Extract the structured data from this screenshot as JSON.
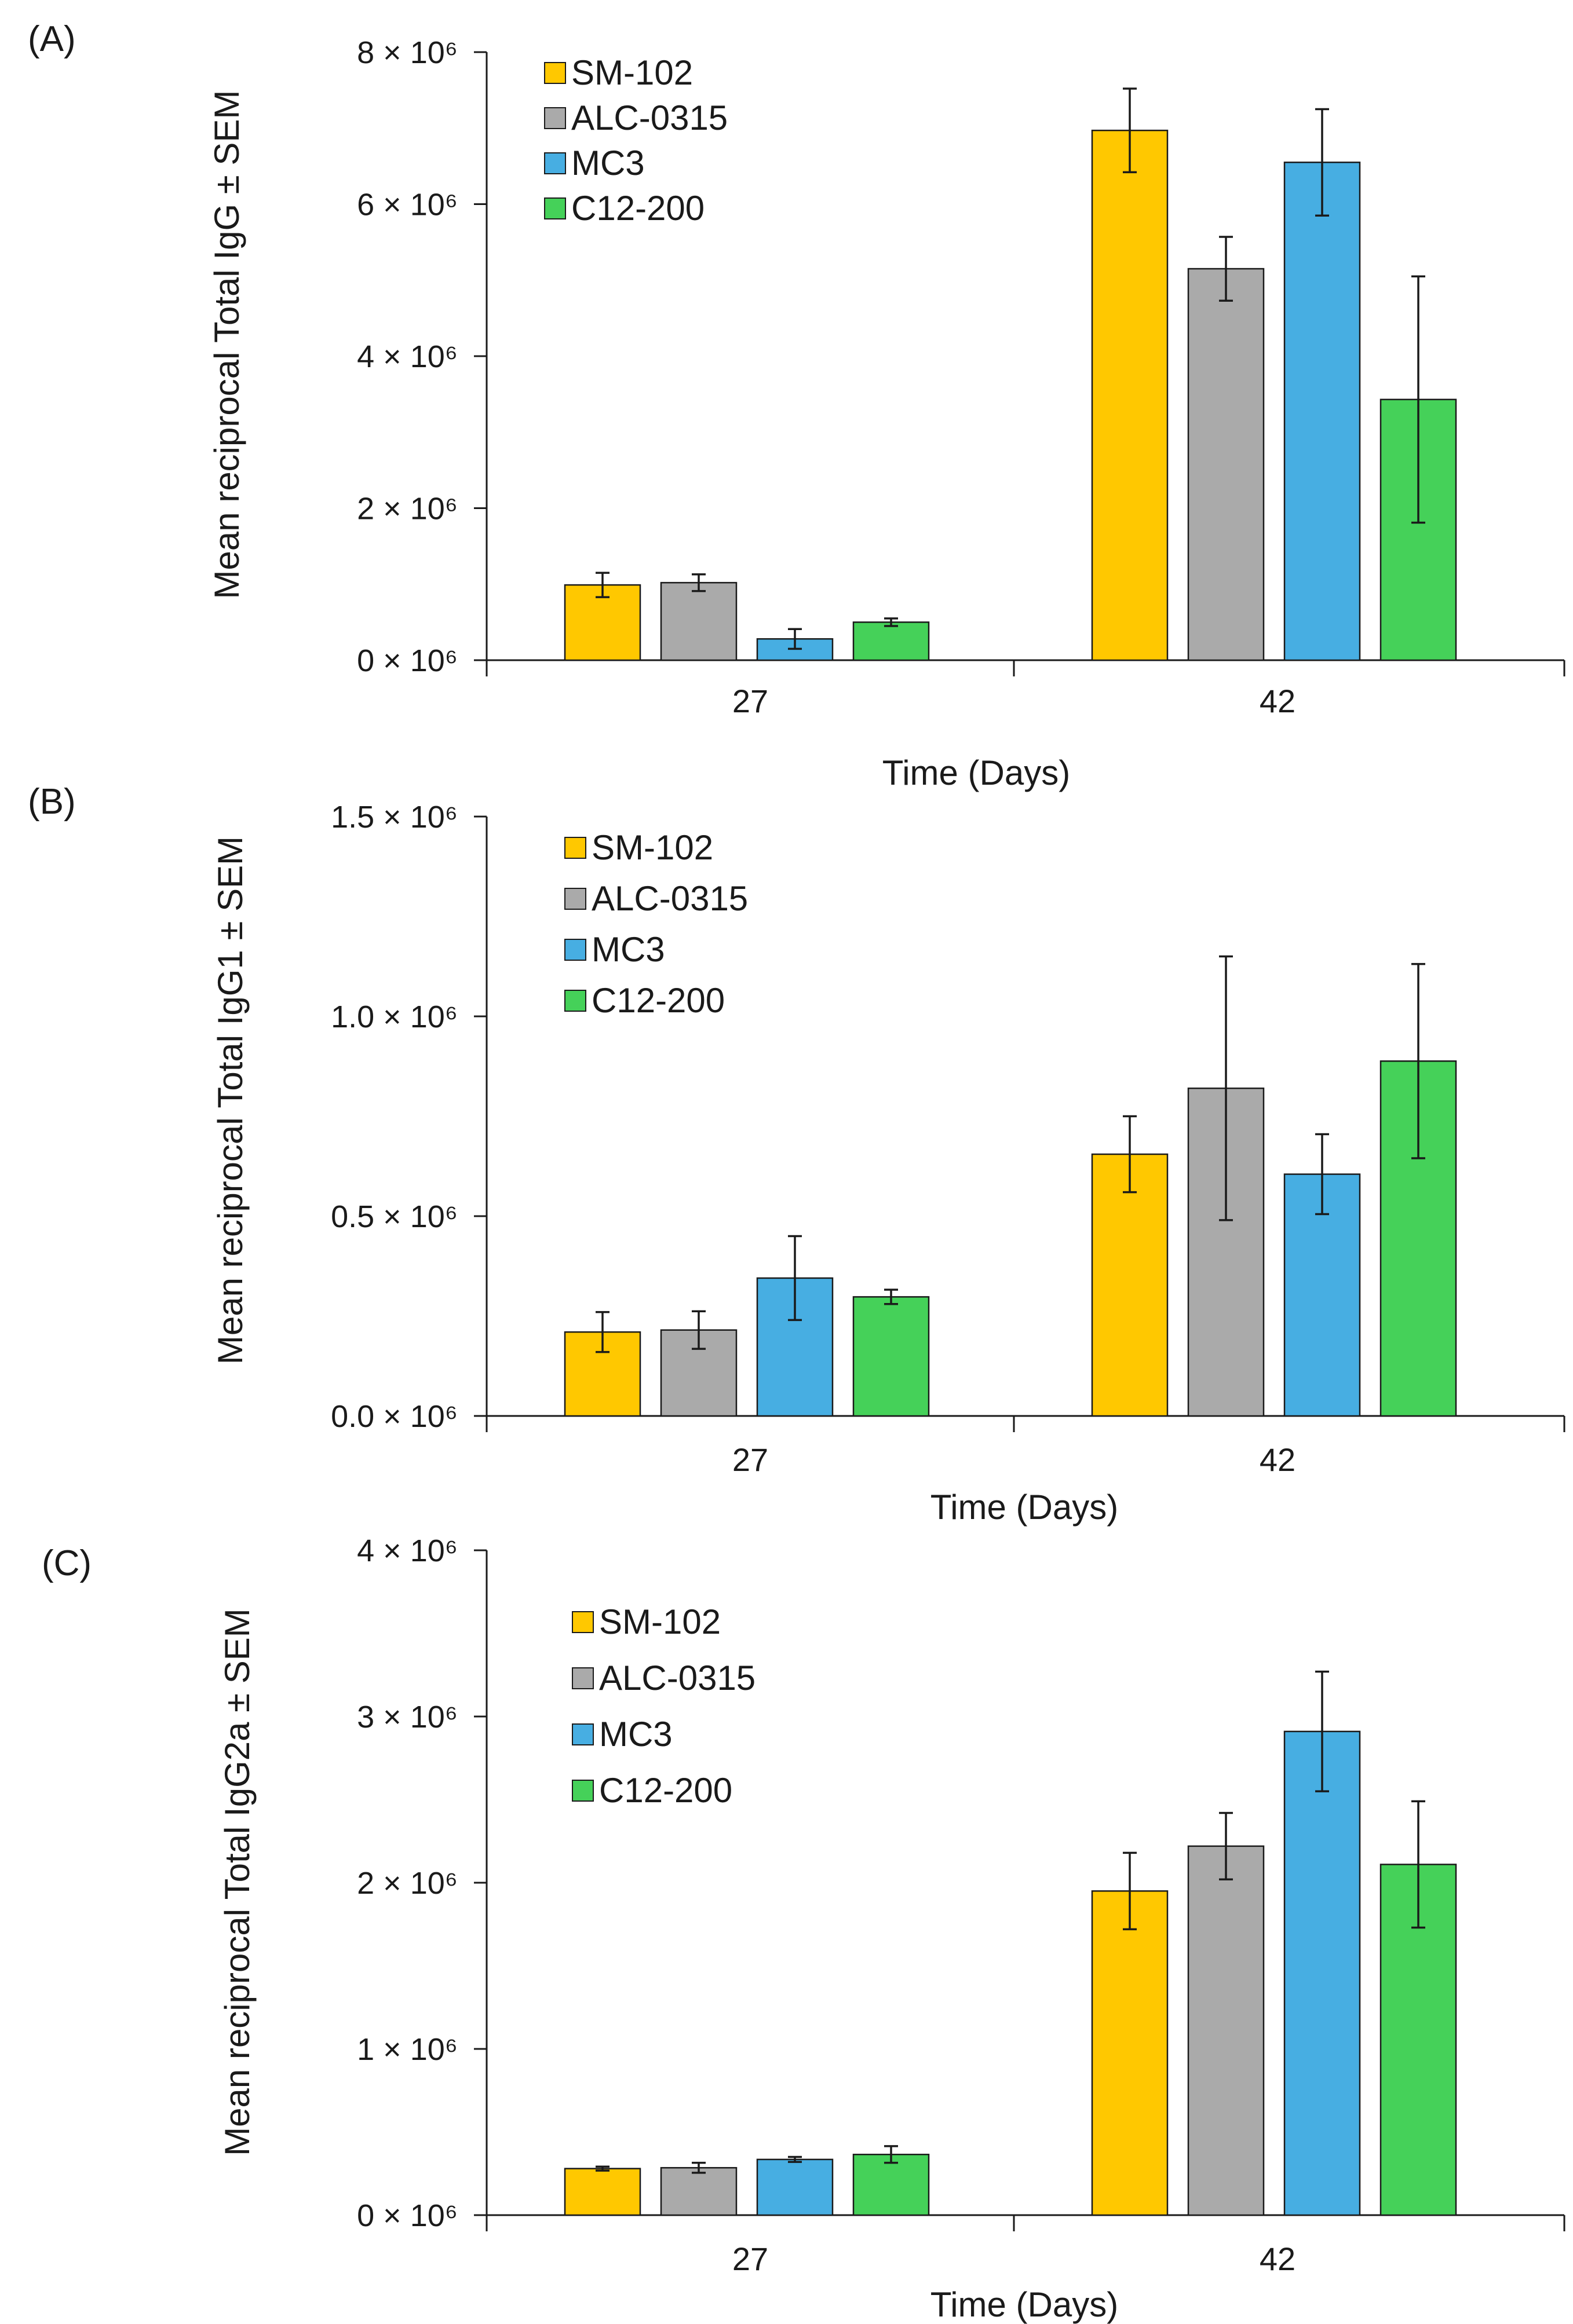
{
  "colors": {
    "SM-102": "#FFC800",
    "ALC-0315": "#AAAAAA",
    "MC3": "#47AEE2",
    "C12-200": "#45D159",
    "axis": "#1a1a1a",
    "error": "#1a1a1a"
  },
  "chart_data": [
    {
      "type": "bar",
      "panel": "(A)",
      "title": "",
      "xlabel": "Time (Days)",
      "ylabel": "Mean reciprocal Total IgG ± SEM",
      "categories": [
        "27",
        "42"
      ],
      "ylim": [
        0,
        8000000
      ],
      "yticks": [
        0,
        2000000,
        4000000,
        6000000,
        8000000
      ],
      "yticklabels": [
        "0 × 10⁶",
        "2 × 10⁶",
        "4 × 10⁶",
        "6 × 10⁶",
        "8 × 10⁶"
      ],
      "legend_position": "top-left",
      "grid": false,
      "series": [
        {
          "name": "SM-102",
          "values": [
            990000,
            6970000
          ],
          "errors": [
            160000,
            550000
          ]
        },
        {
          "name": "ALC-0315",
          "values": [
            1020000,
            5150000
          ],
          "errors": [
            110000,
            420000
          ]
        },
        {
          "name": "MC3",
          "values": [
            280000,
            6550000
          ],
          "errors": [
            130000,
            700000
          ]
        },
        {
          "name": "C12-200",
          "values": [
            500000,
            3430000
          ],
          "errors": [
            50000,
            1620000
          ]
        }
      ]
    },
    {
      "type": "bar",
      "panel": "(B)",
      "title": "",
      "xlabel": "Time (Days)",
      "ylabel": "Mean reciprocal Total IgG1 ± SEM",
      "categories": [
        "27",
        "42"
      ],
      "ylim": [
        0,
        1500000
      ],
      "yticks": [
        0,
        500000,
        1000000,
        1500000
      ],
      "yticklabels": [
        "0.0 × 10⁶",
        "0.5 × 10⁶",
        "1.0 × 10⁶",
        "1.5 × 10⁶"
      ],
      "legend_position": "top-left",
      "grid": false,
      "series": [
        {
          "name": "SM-102",
          "values": [
            210000,
            655000
          ],
          "errors": [
            50000,
            95000
          ]
        },
        {
          "name": "ALC-0315",
          "values": [
            215000,
            820000
          ],
          "errors": [
            47000,
            330000
          ]
        },
        {
          "name": "MC3",
          "values": [
            345000,
            605000
          ],
          "errors": [
            105000,
            100000
          ]
        },
        {
          "name": "C12-200",
          "values": [
            298000,
            888000
          ],
          "errors": [
            18000,
            243000
          ]
        }
      ]
    },
    {
      "type": "bar",
      "panel": "(C)",
      "title": "",
      "xlabel": "Time (Days)",
      "ylabel": "Mean reciprocal Total IgG2a ± SEM",
      "categories": [
        "27",
        "42"
      ],
      "ylim": [
        0,
        4000000
      ],
      "yticks": [
        0,
        1000000,
        2000000,
        3000000,
        4000000
      ],
      "yticklabels": [
        "0 × 10⁶",
        "1 × 10⁶",
        "2 × 10⁶",
        "3 × 10⁶",
        "4 × 10⁶"
      ],
      "legend_position": "top-left",
      "grid": false,
      "series": [
        {
          "name": "SM-102",
          "values": [
            280000,
            1950000
          ],
          "errors": [
            12000,
            230000
          ]
        },
        {
          "name": "ALC-0315",
          "values": [
            285000,
            2220000
          ],
          "errors": [
            30000,
            200000
          ]
        },
        {
          "name": "MC3",
          "values": [
            335000,
            2910000
          ],
          "errors": [
            15000,
            360000
          ]
        },
        {
          "name": "C12-200",
          "values": [
            365000,
            2110000
          ],
          "errors": [
            50000,
            380000
          ]
        }
      ]
    }
  ]
}
